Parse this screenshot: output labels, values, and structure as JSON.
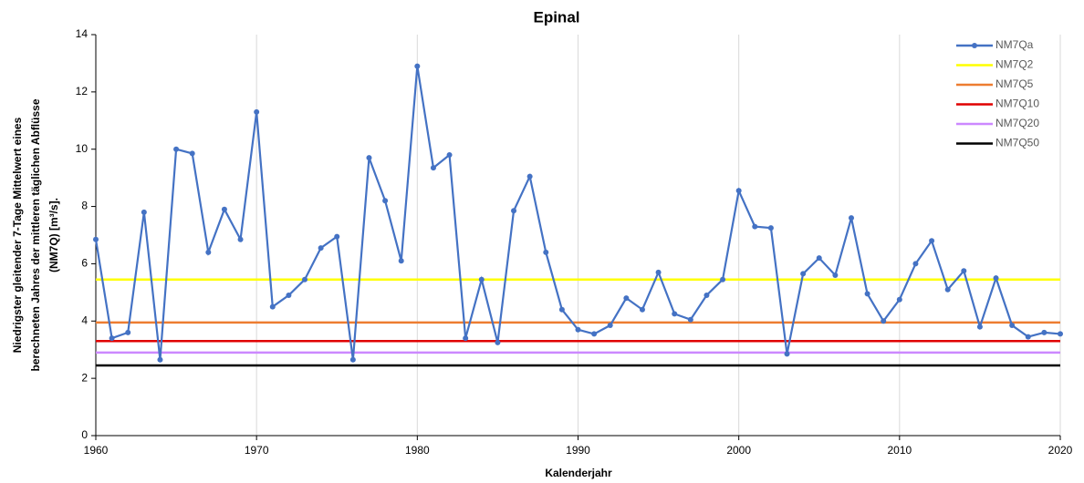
{
  "chart_data": {
    "type": "line",
    "title": "Epinal",
    "x_label": "Kalenderjahr",
    "y_label": [
      "Niedrigster gleitender 7-Tage Mittelwert eines",
      "berechneten Jahres der mittleren täglichen Abflüsse",
      "(NM7Q) [m³/s]."
    ],
    "x": [
      1960,
      1961,
      1962,
      1963,
      1964,
      1965,
      1966,
      1967,
      1968,
      1969,
      1970,
      1971,
      1972,
      1973,
      1974,
      1975,
      1976,
      1977,
      1978,
      1979,
      1980,
      1981,
      1982,
      1983,
      1984,
      1985,
      1986,
      1987,
      1988,
      1989,
      1990,
      1991,
      1992,
      1993,
      1994,
      1995,
      1996,
      1997,
      1998,
      1999,
      2000,
      2001,
      2002,
      2003,
      2004,
      2005,
      2006,
      2007,
      2008,
      2009,
      2010,
      2011,
      2012,
      2013,
      2014,
      2015,
      2016,
      2017,
      2018,
      2019,
      2020
    ],
    "series": [
      {
        "name": "NM7Qa",
        "color": "#4472c4",
        "values": [
          6.85,
          3.4,
          3.6,
          7.8,
          2.65,
          10.0,
          9.85,
          6.4,
          7.9,
          6.85,
          11.3,
          4.5,
          4.9,
          5.45,
          6.55,
          6.95,
          2.65,
          9.7,
          8.2,
          6.1,
          12.9,
          9.35,
          9.8,
          3.4,
          5.45,
          3.25,
          7.85,
          9.05,
          6.4,
          4.4,
          3.7,
          3.55,
          3.85,
          4.8,
          4.4,
          5.7,
          4.25,
          4.05,
          4.9,
          5.45,
          8.55,
          7.3,
          7.25,
          2.85,
          5.65,
          6.2,
          5.6,
          7.6,
          4.95,
          4.0,
          4.75,
          6.0,
          6.8,
          5.1,
          5.75,
          3.8,
          5.5,
          3.85,
          3.45,
          3.6,
          3.55
        ]
      }
    ],
    "reference_lines": [
      {
        "name": "NM7Q2",
        "color": "#ffff00",
        "value": 5.45
      },
      {
        "name": "NM7Q5",
        "color": "#ed7d31",
        "value": 3.95
      },
      {
        "name": "NM7Q10",
        "color": "#e00000",
        "value": 3.3
      },
      {
        "name": "NM7Q20",
        "color": "#cc88ff",
        "value": 2.9
      },
      {
        "name": "NM7Q50",
        "color": "#000000",
        "value": 2.45
      }
    ],
    "xlim": [
      1960,
      2020
    ],
    "xticks": [
      1960,
      1970,
      1980,
      1990,
      2000,
      2010,
      2020
    ],
    "ylim": [
      0,
      14
    ],
    "yticks": [
      0,
      2,
      4,
      6,
      8,
      10,
      12,
      14
    ],
    "grid": "x",
    "legend": "top-right"
  }
}
